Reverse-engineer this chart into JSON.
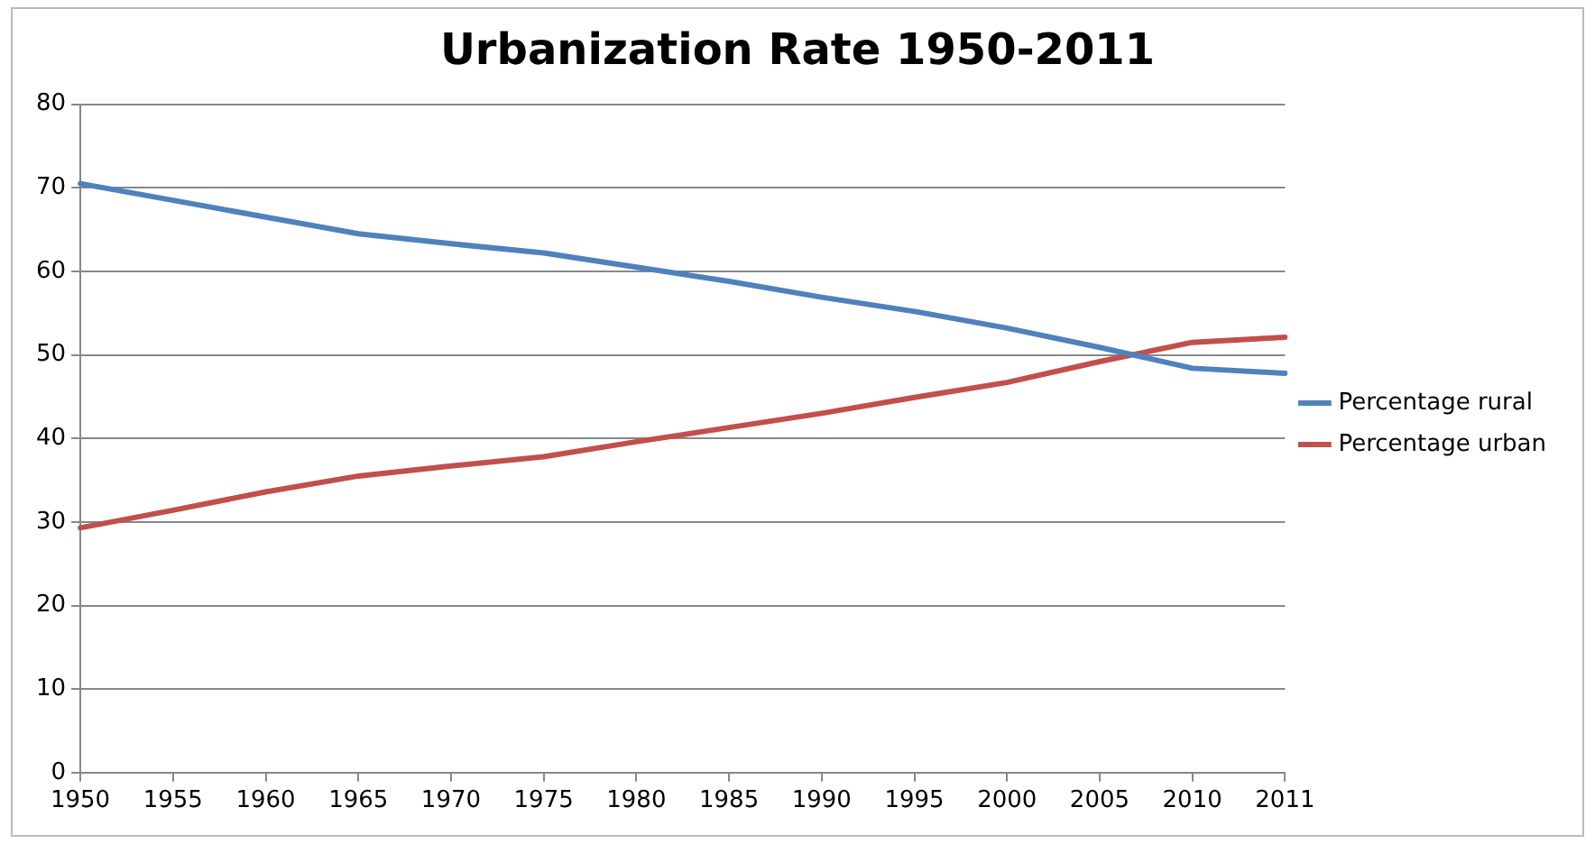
{
  "chart_data": {
    "type": "line",
    "title": "Urbanization Rate 1950-2011",
    "categories": [
      "1950",
      "1955",
      "1960",
      "1965",
      "1970",
      "1975",
      "1980",
      "1985",
      "1990",
      "1995",
      "2000",
      "2005",
      "2010",
      "2011"
    ],
    "series": [
      {
        "name": "Percentage rural",
        "color": "#4f81bd",
        "values": [
          70.5,
          68.5,
          66.5,
          64.5,
          63.3,
          62.2,
          60.5,
          58.8,
          56.9,
          55.2,
          53.2,
          50.9,
          48.4,
          47.8
        ]
      },
      {
        "name": "Percentage urban",
        "color": "#c0504d",
        "values": [
          29.3,
          31.4,
          33.6,
          35.5,
          36.7,
          37.8,
          39.6,
          41.3,
          43.0,
          44.9,
          46.7,
          49.2,
          51.5,
          52.1
        ]
      }
    ],
    "ylim": [
      0,
      80
    ],
    "yticks": [
      0,
      10,
      20,
      30,
      40,
      50,
      60,
      70,
      80
    ],
    "grid": "y",
    "legend": "right",
    "marker": "none",
    "line_style": "solid"
  }
}
